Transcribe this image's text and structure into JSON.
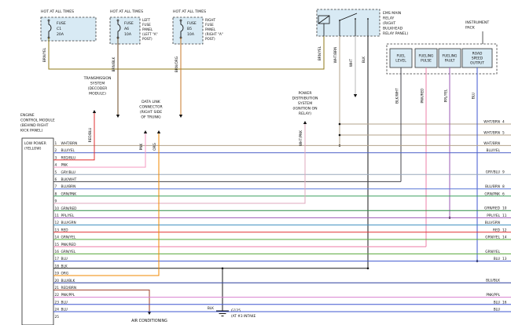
{
  "style": {
    "bg": "#ffffff",
    "box_fill": "#d8eaf4"
  },
  "headers": {
    "hot": "HOT AT ALL TIMES"
  },
  "colors": {
    "BRN/YEL": "#8f7a1a",
    "BRN/BLK": "#6b4a21",
    "BRN/ORG": "#c87a28",
    "WHT/BRN": "#b3a38b",
    "WHT": "#b9b9b9",
    "BLK": "#1a1a1a",
    "WHT/PNK": "#dfa8bc",
    "BLU/YEL": "#4f63c8",
    "RED/BLU": "#e03030",
    "PNK": "#f49ac1",
    "GRY/BLU": "#98a8bc",
    "BLK/WHT": "#44444c",
    "BLU/BRN": "#5b79d8",
    "GRN/PNK": "#3fa060",
    "GRN/RED": "#2e8b45",
    "PPL/YEL": "#9b59b6",
    "BLU/GRN": "#3f8fbf",
    "RED": "#e03030",
    "GRN/YEL": "#57a839",
    "PNK/RED": "#ee7fa8",
    "BLU": "#3f57d0",
    "ORG": "#f08a00",
    "BLU/BLK": "#2c3e9e",
    "RED/BRN": "#a0402a",
    "PNK/PPL": "#d87fd0"
  },
  "fuses": [
    {
      "label": [
        "FUSE",
        "C1",
        "20A"
      ],
      "wire": "BRN/YEL",
      "note": []
    },
    {
      "label": [
        "FUSE",
        "A6",
        "10A"
      ],
      "wire": "BRN/BLK",
      "note": [
        "LEFT",
        "FUSE",
        "PANEL",
        "(LEFT \"A\"",
        "POST)"
      ]
    },
    {
      "label": [
        "FUSE",
        "B5",
        "10A"
      ],
      "wire": "BRN/ORG",
      "note": [
        "RIGHT",
        "FUSE",
        "PANEL",
        "(RIGHT \"A\"",
        "POST)"
      ]
    }
  ],
  "relay": {
    "label": [
      "EMS MAIN",
      "RELAY",
      "(RIGHT",
      "BULKHEAD",
      "RELAY PANEL)"
    ],
    "wires": [
      "BRN/YEL",
      "WHT/BRN",
      "WHT",
      "BLK"
    ],
    "branches": [
      {
        "label": "WHT/BRN",
        "ref": "4"
      },
      {
        "label": "WHT/BRN",
        "ref": "5"
      }
    ]
  },
  "instrument_pack": {
    "label": [
      "INSTRUMENT",
      "PACK"
    ],
    "units": [
      {
        "label": [
          "FUEL",
          "LEVEL"
        ],
        "wire": "BLK/WHT"
      },
      {
        "label": [
          "FUELING",
          "PULSE"
        ],
        "wire": "PNK/RED"
      },
      {
        "label": [
          "FUELING",
          "FAULT"
        ],
        "wire": "PPL/YEL"
      },
      {
        "label": [
          "ROAD",
          "SPEED",
          "OUTPUT"
        ],
        "wire": "BLU"
      }
    ]
  },
  "ecm": {
    "label": [
      "ENGINE",
      "CONTROL MODULE",
      "(BEHIND RIGHT",
      "KICK PANEL)"
    ],
    "mode": [
      "LOW POWER",
      "(YELLOW)"
    ],
    "pins": [
      {
        "n": "1",
        "wire": "WHT/BRN",
        "right": "WHT/BRN",
        "ref": ""
      },
      {
        "n": "2",
        "wire": "BLU/YEL",
        "right": "BLU/YEL",
        "ref": ""
      },
      {
        "n": "3",
        "wire": "RED/BLU",
        "right": "",
        "ref": ""
      },
      {
        "n": "4",
        "wire": "PNK",
        "right": "",
        "ref": ""
      },
      {
        "n": "5",
        "wire": "GRY/BLU",
        "right": "GRY/BLU",
        "ref": "9"
      },
      {
        "n": "6",
        "wire": "BLK/WHT",
        "right": "",
        "ref": ""
      },
      {
        "n": "7",
        "wire": "BLU/BRN",
        "right": "BLU/BRN",
        "ref": "8"
      },
      {
        "n": "8",
        "wire": "GRN/PNK",
        "right": "GRN/PNK",
        "ref": "6"
      },
      {
        "n": "9",
        "wire": "",
        "right": "",
        "ref": ""
      },
      {
        "n": "10",
        "wire": "GRN/RED",
        "right": "GRN/RED",
        "ref": "10"
      },
      {
        "n": "11",
        "wire": "PPL/YEL",
        "right": "PPL/YEL",
        "ref": "11"
      },
      {
        "n": "12",
        "wire": "BLU/GRN",
        "right": "BLU/GRN",
        "ref": ""
      },
      {
        "n": "13",
        "wire": "RED",
        "right": "RED",
        "ref": "12"
      },
      {
        "n": "14",
        "wire": "GRN/YEL",
        "right": "GRN/YEL",
        "ref": "14"
      },
      {
        "n": "15",
        "wire": "PNK/RED",
        "right": "",
        "ref": ""
      },
      {
        "n": "16",
        "wire": "GRN/YEL",
        "right": "GRN/YEL",
        "ref": ""
      },
      {
        "n": "17",
        "wire": "BLU",
        "right": "BLU",
        "ref": "13"
      },
      {
        "n": "18",
        "wire": "BLK",
        "right": "",
        "ref": ""
      },
      {
        "n": "19",
        "wire": "ORG",
        "right": "",
        "ref": ""
      },
      {
        "n": "20",
        "wire": "BLU/BLK",
        "right": "BLU/BLK",
        "ref": ""
      },
      {
        "n": "21",
        "wire": "RED/BRN",
        "right": "",
        "ref": ""
      },
      {
        "n": "22",
        "wire": "PNK/PPL",
        "right": "PNK/PPL",
        "ref": ""
      },
      {
        "n": "23",
        "wire": "BLU",
        "right": "BLU",
        "ref": "16"
      },
      {
        "n": "24",
        "wire": "BLU",
        "right": "BLU",
        "ref": ""
      },
      {
        "n": "25",
        "wire": "",
        "right": "",
        "ref": ""
      }
    ]
  },
  "systems": {
    "transmission": {
      "label": [
        "TRANSMISSION",
        "SYSTEM",
        "(DECODER",
        "MODULE)"
      ],
      "wire": "RED/BLU"
    },
    "data_link": {
      "label": [
        "DATA LINK",
        "CONNECTOR",
        "(RIGHT SIDE",
        "OF TRUNK)"
      ],
      "wires": [
        "PNK",
        "ORG"
      ]
    },
    "power_dist": {
      "label": [
        "POWER",
        "DISTRIBUTION",
        "SYSTEM",
        "(IGNITION ON",
        "RELAY)"
      ],
      "wire": "WHT/PNK"
    },
    "air_conditioning": {
      "label": "AIR CONDITIONING",
      "wire": "RED/BRN"
    },
    "ground": {
      "wire": "BLK",
      "name": "G125",
      "note": "(AT #3 INTAKE"
    }
  }
}
